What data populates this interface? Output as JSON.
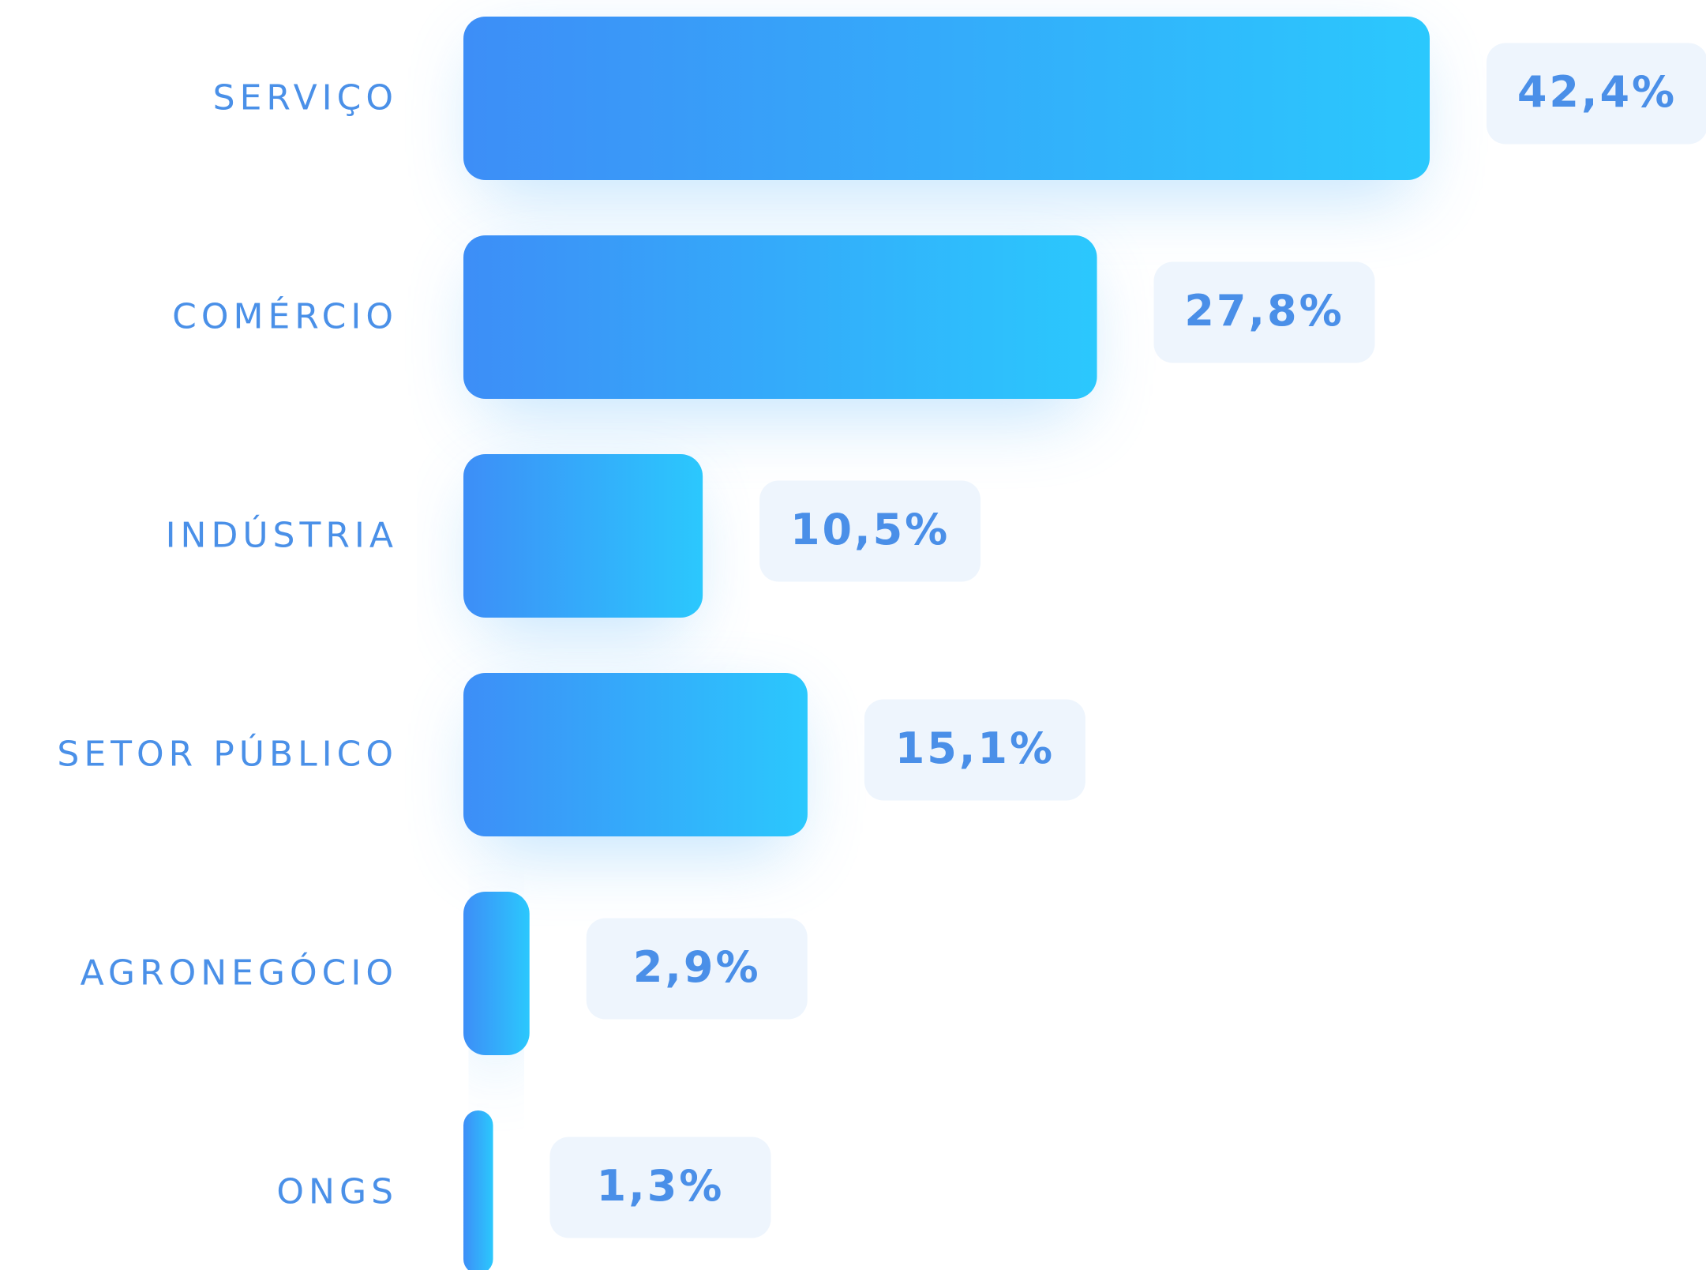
{
  "chart_data": {
    "type": "bar",
    "orientation": "horizontal",
    "categories": [
      "SERVIÇO",
      "COMÉRCIO",
      "INDÚSTRIA",
      "SETOR PÚBLICO",
      "AGRONEGÓCIO",
      "ONGS"
    ],
    "values": [
      42.4,
      27.8,
      10.5,
      15.1,
      2.9,
      1.3
    ],
    "value_labels": [
      "42,4%",
      "27,8%",
      "10,5%",
      "15,1%",
      "2,9%",
      "1,3%"
    ],
    "color": [
      "#3d8ef7",
      "#2bc8fd"
    ]
  }
}
